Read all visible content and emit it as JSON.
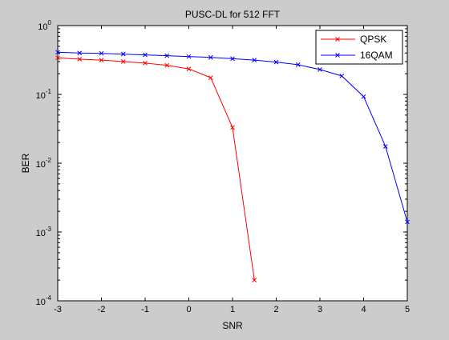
{
  "chart_data": {
    "type": "line",
    "title": "PUSC-DL for 512 FFT",
    "xlabel": "SNR",
    "ylabel": "BER",
    "xlim": [
      -3,
      5
    ],
    "ylim": [
      0.0001,
      1
    ],
    "yscale": "log",
    "grid": false,
    "legend_position": "top-right",
    "x_ticks": [
      "-3",
      "-2",
      "-1",
      "0",
      "1",
      "2",
      "3",
      "4",
      "5"
    ],
    "y_ticks": [
      {
        "base": "10",
        "exp": "0"
      },
      {
        "base": "10",
        "exp": "-1"
      },
      {
        "base": "10",
        "exp": "-2"
      },
      {
        "base": "10",
        "exp": "-3"
      },
      {
        "base": "10",
        "exp": "-4"
      }
    ],
    "series": [
      {
        "name": "QPSK",
        "color": "#ff0000",
        "marker": "x",
        "x": [
          -3,
          -2.5,
          -2,
          -1.5,
          -1,
          -0.5,
          0,
          0.5,
          1,
          1.5
        ],
        "y": [
          0.34,
          0.325,
          0.315,
          0.3,
          0.285,
          0.265,
          0.235,
          0.175,
          0.033,
          0.0002
        ]
      },
      {
        "name": "16QAM",
        "color": "#0000ff",
        "marker": "x",
        "x": [
          -3,
          -2.5,
          -2,
          -1.5,
          -1,
          -0.5,
          0,
          0.5,
          1,
          1.5,
          2,
          2.5,
          3,
          3.5,
          4,
          4.5,
          5
        ],
        "y": [
          0.41,
          0.4,
          0.395,
          0.385,
          0.375,
          0.365,
          0.355,
          0.345,
          0.33,
          0.315,
          0.295,
          0.27,
          0.23,
          0.185,
          0.093,
          0.0175,
          0.0014
        ]
      }
    ]
  }
}
